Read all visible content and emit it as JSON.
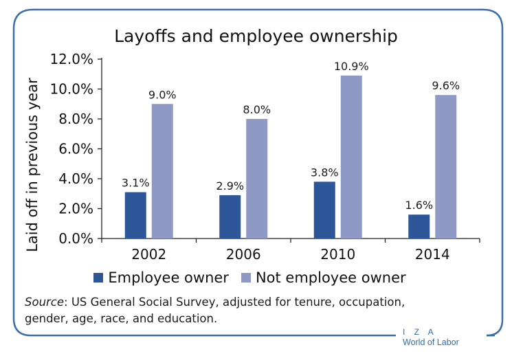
{
  "chart_data": {
    "type": "bar",
    "title": "Layoffs and employee ownership",
    "ylabel": "Laid off in previous year",
    "xlabel": "",
    "categories": [
      "2002",
      "2006",
      "2010",
      "2014"
    ],
    "series": [
      {
        "name": "Employee owner",
        "values": [
          3.1,
          2.9,
          3.8,
          1.6
        ],
        "labels": [
          "3.1%",
          "2.9%",
          "3.8%",
          "1.6%"
        ],
        "color": "#2c5697"
      },
      {
        "name": "Not employee owner",
        "values": [
          9.0,
          8.0,
          10.9,
          9.6
        ],
        "labels": [
          "9.0%",
          "8.0%",
          "10.9%",
          "9.6%"
        ],
        "color": "#8f99c6"
      }
    ],
    "ylim": [
      0,
      12
    ],
    "yticks": [
      0,
      2,
      4,
      6,
      8,
      10,
      12
    ],
    "ytick_labels": [
      "0.0%",
      "2.0%",
      "4.0%",
      "6.0%",
      "8.0%",
      "10.0%",
      "12.0%"
    ],
    "grid": false,
    "legend_position": "bottom"
  },
  "source": {
    "label": "Source",
    "text": ": US General Social Survey, adjusted for tenure, occupation,",
    "text2": "gender, age, race, and education."
  },
  "brand": {
    "line1": "I Z A",
    "line2": "World of Labor"
  },
  "colors": {
    "frame": "#3b6ea8",
    "axis": "#222222"
  }
}
